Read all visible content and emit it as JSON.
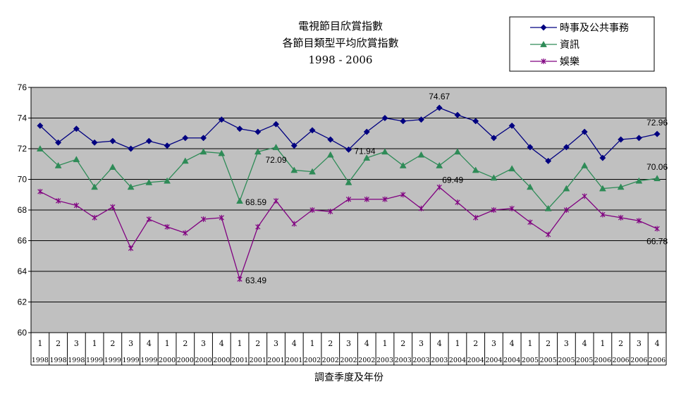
{
  "chart_data": {
    "type": "line",
    "title_lines": [
      "電視節目欣賞指數",
      "各節目類型平均欣賞指數",
      "1998 - 2006"
    ],
    "xlabel": "調查季度及年份",
    "ylabel": "",
    "ylim": [
      60,
      76
    ],
    "y_ticks": [
      60,
      62,
      64,
      66,
      68,
      70,
      72,
      74,
      76
    ],
    "grid": true,
    "legend_position": "top-right",
    "plot_bg": "#c0c0c0",
    "categories": [
      {
        "q": "1",
        "y": "1998"
      },
      {
        "q": "2",
        "y": "1998"
      },
      {
        "q": "3",
        "y": "1998"
      },
      {
        "q": "1",
        "y": "1999"
      },
      {
        "q": "2",
        "y": "1999"
      },
      {
        "q": "3",
        "y": "1999"
      },
      {
        "q": "4",
        "y": "1999"
      },
      {
        "q": "1",
        "y": "2000"
      },
      {
        "q": "2",
        "y": "2000"
      },
      {
        "q": "3",
        "y": "2000"
      },
      {
        "q": "4",
        "y": "2000"
      },
      {
        "q": "1",
        "y": "2001"
      },
      {
        "q": "2",
        "y": "2001"
      },
      {
        "q": "3",
        "y": "2001"
      },
      {
        "q": "4",
        "y": "2001"
      },
      {
        "q": "1",
        "y": "2002"
      },
      {
        "q": "2",
        "y": "2002"
      },
      {
        "q": "3",
        "y": "2002"
      },
      {
        "q": "4",
        "y": "2002"
      },
      {
        "q": "1",
        "y": "2003"
      },
      {
        "q": "2",
        "y": "2003"
      },
      {
        "q": "3",
        "y": "2003"
      },
      {
        "q": "4",
        "y": "2003"
      },
      {
        "q": "1",
        "y": "2004"
      },
      {
        "q": "2",
        "y": "2004"
      },
      {
        "q": "3",
        "y": "2004"
      },
      {
        "q": "4",
        "y": "2004"
      },
      {
        "q": "1",
        "y": "2005"
      },
      {
        "q": "2",
        "y": "2005"
      },
      {
        "q": "3",
        "y": "2005"
      },
      {
        "q": "4",
        "y": "2005"
      },
      {
        "q": "1",
        "y": "2006"
      },
      {
        "q": "2",
        "y": "2006"
      },
      {
        "q": "3",
        "y": "2006"
      },
      {
        "q": "4",
        "y": "2006"
      }
    ],
    "series": [
      {
        "name": "時事及公共事務",
        "color": "#000080",
        "marker": "diamond",
        "values": [
          73.5,
          72.4,
          73.3,
          72.4,
          72.5,
          72.0,
          72.5,
          72.2,
          72.7,
          72.7,
          73.9,
          73.3,
          73.1,
          73.6,
          72.2,
          73.2,
          72.6,
          71.94,
          73.1,
          74.0,
          73.8,
          73.9,
          74.67,
          74.2,
          73.8,
          72.7,
          73.5,
          72.1,
          71.2,
          72.1,
          73.1,
          71.4,
          72.6,
          72.7,
          72.96
        ]
      },
      {
        "name": "資訊",
        "color": "#2e8b57",
        "marker": "triangle",
        "values": [
          72.0,
          70.9,
          71.3,
          69.5,
          70.8,
          69.5,
          69.8,
          69.9,
          71.2,
          71.8,
          71.7,
          68.59,
          71.8,
          72.09,
          70.6,
          70.5,
          71.6,
          69.8,
          71.4,
          71.8,
          70.9,
          71.6,
          70.9,
          71.8,
          70.6,
          70.1,
          70.7,
          69.5,
          68.1,
          69.4,
          70.9,
          69.4,
          69.5,
          69.9,
          70.06
        ]
      },
      {
        "name": "娛樂",
        "color": "#800080",
        "marker": "star",
        "values": [
          69.2,
          68.6,
          68.3,
          67.5,
          68.2,
          65.5,
          67.4,
          66.9,
          66.5,
          67.4,
          67.5,
          63.49,
          66.9,
          68.6,
          67.1,
          68.0,
          67.9,
          68.7,
          68.7,
          68.7,
          69.0,
          68.1,
          69.49,
          68.5,
          67.5,
          68.0,
          68.1,
          67.2,
          66.4,
          68.0,
          68.9,
          67.7,
          67.5,
          67.3,
          66.78
        ]
      }
    ],
    "annotations": [
      {
        "series": 0,
        "index": 22,
        "text": "74.67",
        "place": "above"
      },
      {
        "series": 0,
        "index": 17,
        "text": "71.94",
        "place": "right"
      },
      {
        "series": 0,
        "index": 34,
        "text": "72.96",
        "place": "above"
      },
      {
        "series": 1,
        "index": 11,
        "text": "68.59",
        "place": "right"
      },
      {
        "series": 1,
        "index": 13,
        "text": "72.09",
        "place": "below"
      },
      {
        "series": 1,
        "index": 34,
        "text": "70.06",
        "place": "above"
      },
      {
        "series": 2,
        "index": 11,
        "text": "63.49",
        "place": "right"
      },
      {
        "series": 2,
        "index": 22,
        "text": "69.49",
        "place": "above-right"
      },
      {
        "series": 2,
        "index": 34,
        "text": "66.78",
        "place": "below"
      }
    ]
  }
}
